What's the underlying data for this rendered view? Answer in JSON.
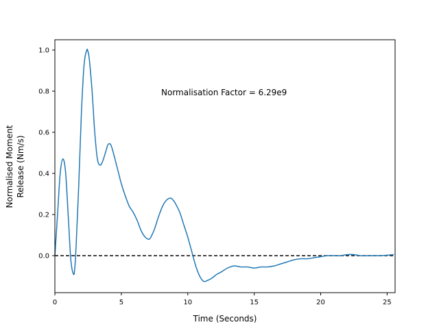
{
  "chart_data": {
    "type": "line",
    "title": "",
    "xlabel": "Time (Seconds)",
    "ylabel_lines": [
      "Normalised Moment",
      "Release (Nm/s)"
    ],
    "xlim": [
      0,
      25.6
    ],
    "ylim": [
      -0.18,
      1.05
    ],
    "xticks": [
      0,
      5,
      10,
      15,
      20,
      25
    ],
    "yticks": [
      0.0,
      0.2,
      0.4,
      0.6,
      0.8,
      1.0
    ],
    "ytick_labels": [
      "0.0",
      "0.2",
      "0.4",
      "0.6",
      "0.8",
      "1.0"
    ],
    "grid": false,
    "annotation": {
      "text": "Normalisation Factor = 6.29e9",
      "x": 8.0,
      "y": 0.8
    },
    "reference_line": {
      "y": 0.0,
      "style": "dashed",
      "color": "#000000"
    },
    "series": [
      {
        "color": "#1f77b4",
        "x": [
          0,
          0.2,
          0.4,
          0.6,
          0.8,
          1.0,
          1.2,
          1.4,
          1.5,
          1.6,
          1.8,
          2.0,
          2.2,
          2.4,
          2.5,
          2.6,
          2.8,
          3.0,
          3.2,
          3.4,
          3.6,
          3.8,
          4.0,
          4.2,
          4.4,
          4.6,
          4.8,
          5.0,
          5.3,
          5.6,
          5.9,
          6.2,
          6.5,
          6.8,
          7.1,
          7.3,
          7.5,
          7.8,
          8.1,
          8.4,
          8.7,
          8.9,
          9.1,
          9.4,
          9.7,
          10.0,
          10.3,
          10.6,
          10.9,
          11.2,
          11.5,
          11.8,
          12.0,
          12.2,
          12.5,
          13.0,
          13.5,
          14.0,
          14.5,
          15.0,
          15.5,
          16.0,
          16.5,
          17.0,
          17.5,
          18.0,
          18.5,
          19.0,
          19.5,
          20.0,
          20.5,
          21.0,
          21.5,
          22.0,
          22.5,
          23.0,
          23.5,
          24.0,
          24.5,
          25.0,
          25.5
        ],
        "y": [
          0.0,
          0.2,
          0.4,
          0.47,
          0.41,
          0.2,
          -0.02,
          -0.09,
          -0.06,
          0.05,
          0.35,
          0.7,
          0.93,
          1.0,
          0.99,
          0.95,
          0.8,
          0.6,
          0.47,
          0.44,
          0.46,
          0.5,
          0.54,
          0.54,
          0.5,
          0.45,
          0.4,
          0.35,
          0.29,
          0.24,
          0.21,
          0.17,
          0.12,
          0.09,
          0.08,
          0.1,
          0.13,
          0.19,
          0.24,
          0.27,
          0.28,
          0.27,
          0.25,
          0.21,
          0.15,
          0.09,
          0.02,
          -0.05,
          -0.1,
          -0.125,
          -0.12,
          -0.11,
          -0.1,
          -0.09,
          -0.08,
          -0.06,
          -0.05,
          -0.055,
          -0.055,
          -0.06,
          -0.055,
          -0.055,
          -0.05,
          -0.04,
          -0.03,
          -0.02,
          -0.015,
          -0.015,
          -0.01,
          -0.005,
          0.0,
          0.0,
          0.0,
          0.005,
          0.005,
          0.0,
          0.0,
          0.0,
          0.0,
          0.002,
          0.005
        ]
      }
    ]
  }
}
